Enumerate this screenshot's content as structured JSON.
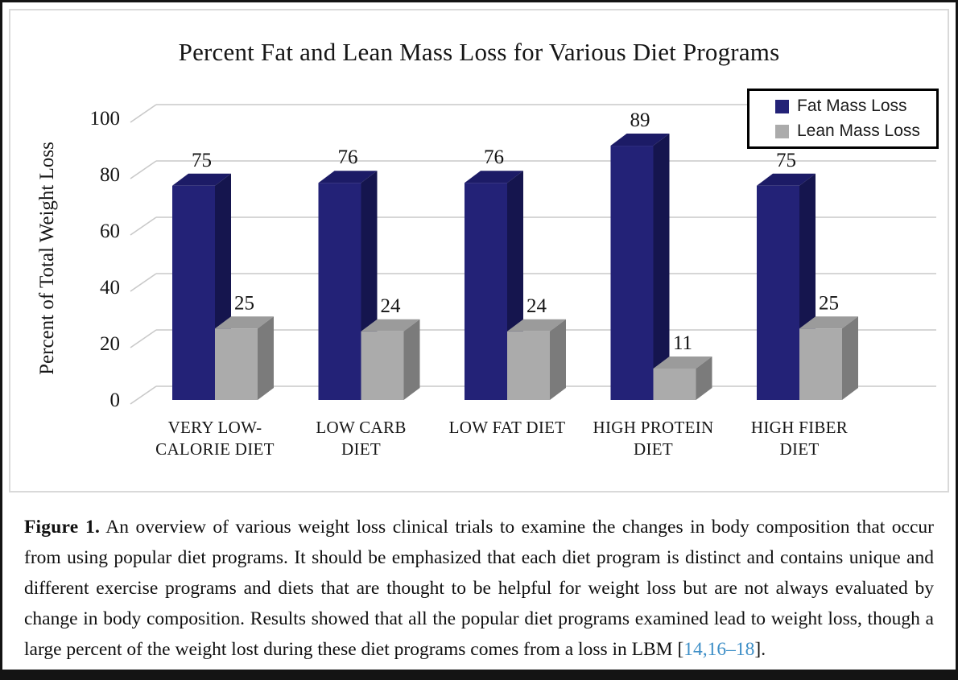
{
  "figure": {
    "caption": {
      "label": "Figure 1.",
      "body": " An overview of various weight loss clinical trials to examine the changes in body composition that occur from using popular diet programs. It should be emphasized that each diet program is distinct and contains unique and different exercise programs and diets that are thought to be helpful for weight loss but are not always evaluated by change in body composition. Results showed that all the popular diet programs examined lead to weight loss, though a large percent of the weight lost during these diet programs comes from a loss in LBM [",
      "citation": "14,16–18",
      "closing": "]."
    },
    "citation_color": "#3E8FC7"
  },
  "chart_data": {
    "type": "bar",
    "style": "3d",
    "title": "Percent Fat and Lean Mass Loss for Various Diet Programs",
    "ylabel": "Percent of Total Weight Loss",
    "xlabel": "",
    "ylim": [
      0,
      100
    ],
    "yticks": [
      0,
      20,
      40,
      60,
      80,
      100
    ],
    "grid": true,
    "grid_color": "#c9c9c9",
    "legend_position": "top-right",
    "categories": [
      "VERY LOW-CALORIE DIET",
      "LOW CARB DIET",
      "LOW FAT DIET",
      "HIGH PROTEIN DIET",
      "HIGH FIBER DIET"
    ],
    "category_lines": [
      [
        "VERY LOW-",
        "CALORIE DIET"
      ],
      [
        "LOW CARB",
        "DIET"
      ],
      [
        "LOW FAT DIET"
      ],
      [
        "HIGH PROTEIN",
        "DIET"
      ],
      [
        "HIGH FIBER",
        "DIET"
      ]
    ],
    "series": [
      {
        "name": "Fat Mass Loss",
        "values": [
          75,
          76,
          76,
          89,
          75
        ],
        "color_front": "#232277",
        "color_top": "#1c1b66",
        "color_side": "#15154e"
      },
      {
        "name": "Lean Mass Loss",
        "values": [
          25,
          24,
          24,
          11,
          25
        ],
        "color_front": "#ababab",
        "color_top": "#9b9b9b",
        "color_side": "#7b7b7b"
      }
    ]
  }
}
